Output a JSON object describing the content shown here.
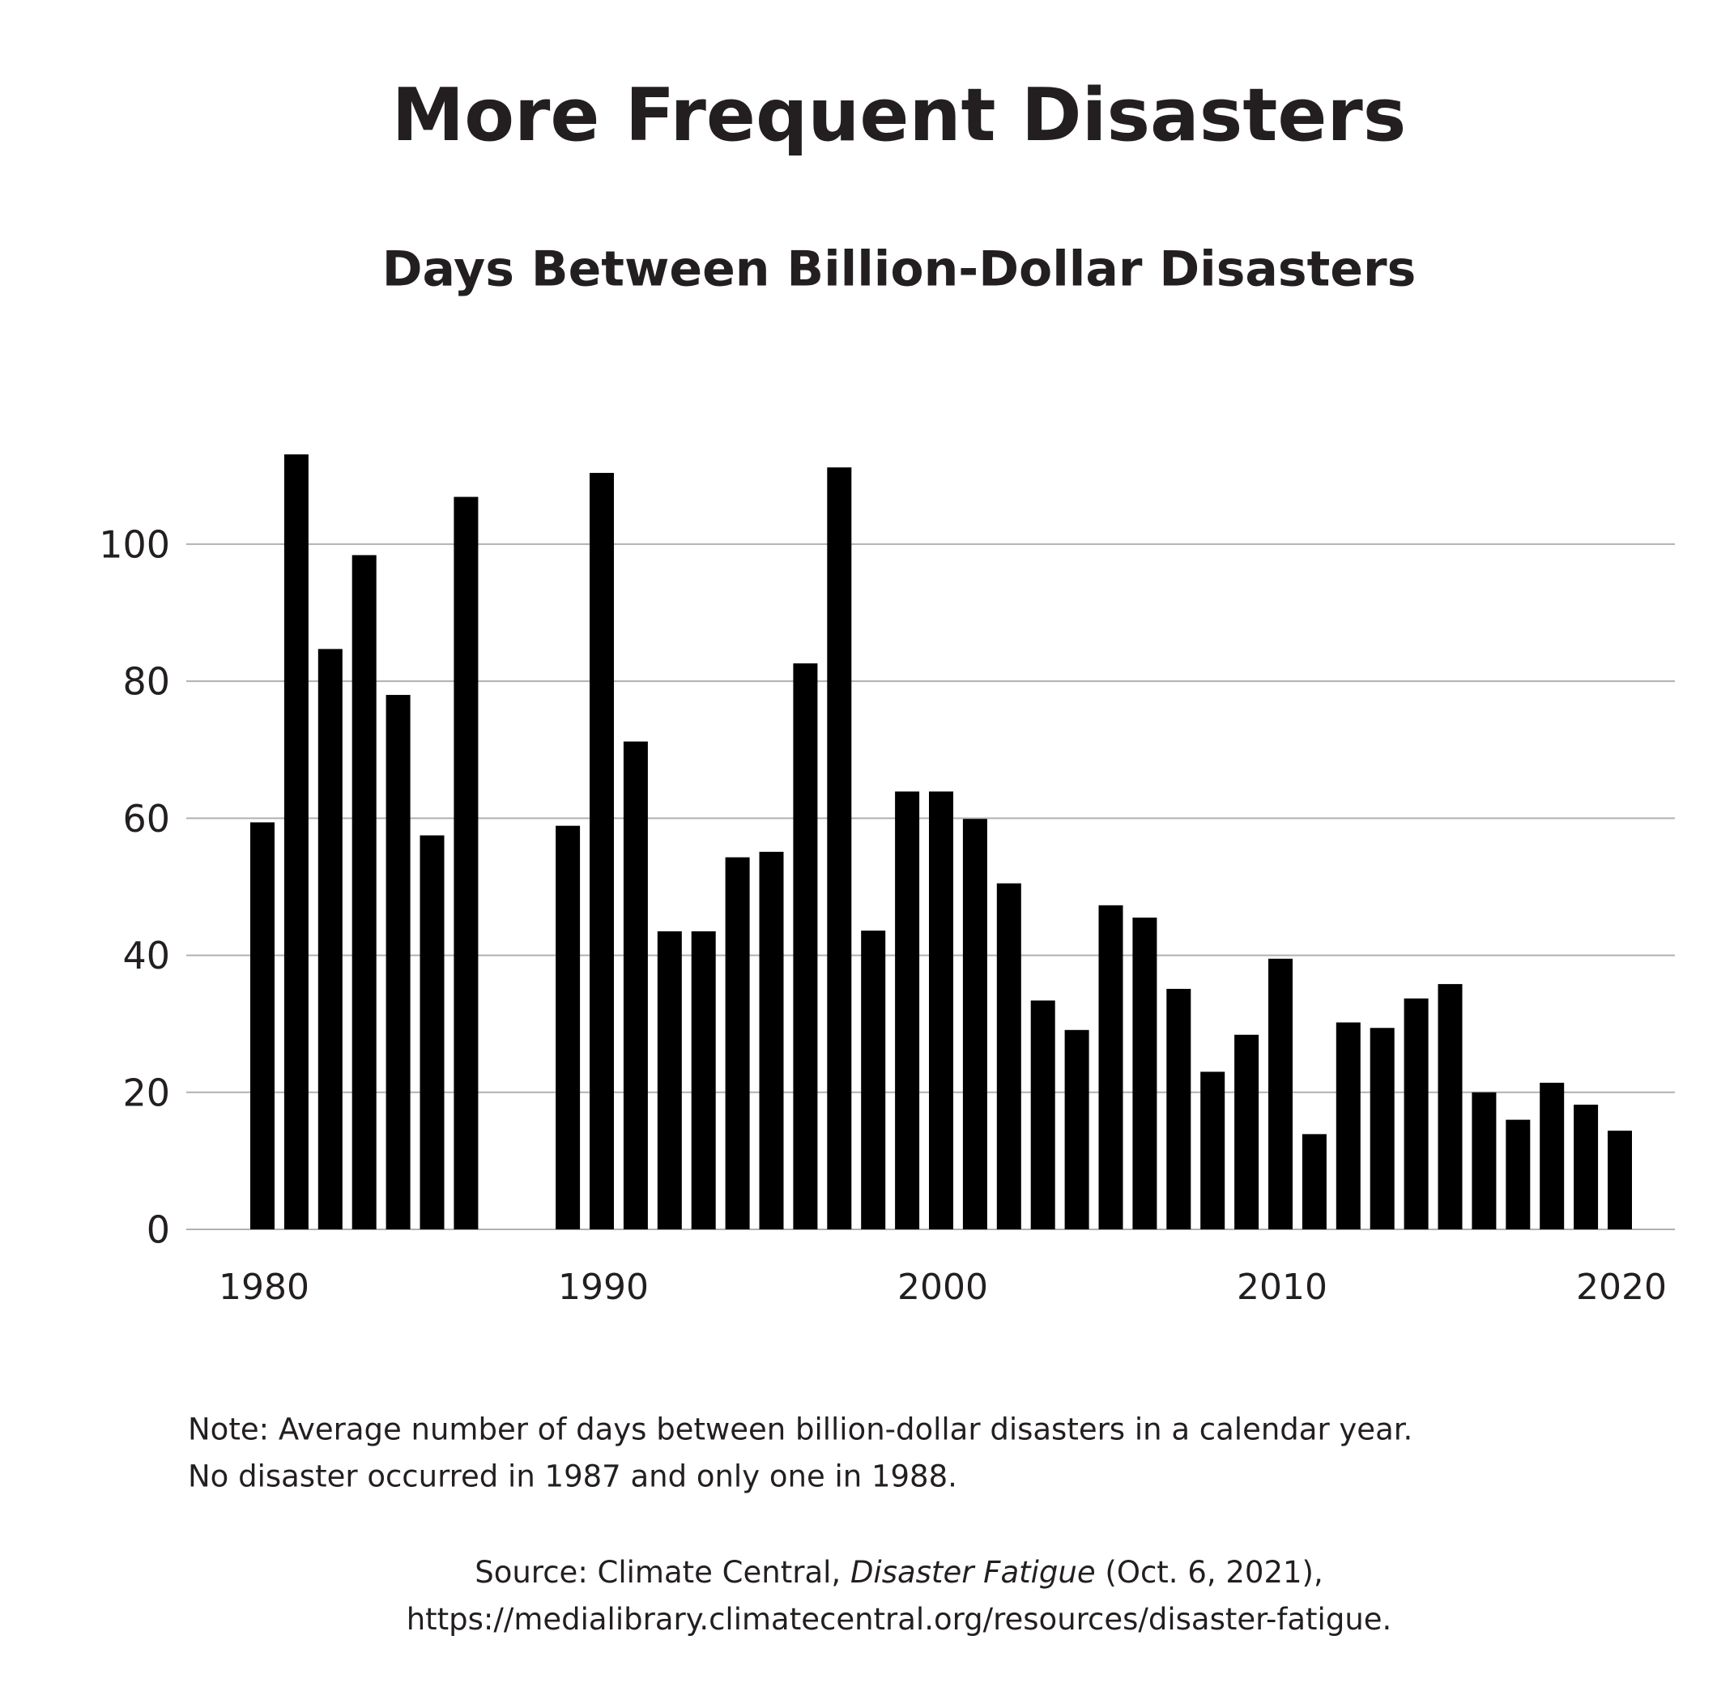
{
  "chart_data": {
    "type": "bar",
    "title": "More Frequent Disasters",
    "subtitle": "Days Between Billion-Dollar Disasters",
    "categories": [
      "1980",
      null,
      null,
      null,
      null,
      null,
      null,
      null,
      null,
      null,
      "1990",
      null,
      null,
      null,
      null,
      null,
      null,
      null,
      null,
      null,
      "2000",
      null,
      null,
      null,
      null,
      null,
      null,
      null,
      null,
      null,
      "2010",
      null,
      null,
      null,
      null,
      null,
      null,
      null,
      null,
      null,
      "2020"
    ],
    "values": [
      59.4,
      113.1,
      84.7,
      98.4,
      78,
      57.5,
      106.9,
      null,
      null,
      58.9,
      110.4,
      71.2,
      43.5,
      43.5,
      54.3,
      55.1,
      82.6,
      111.2,
      43.6,
      63.9,
      63.9,
      59.9,
      50.5,
      33.4,
      29.1,
      47.3,
      45.5,
      35.1,
      23,
      28.4,
      39.5,
      13.9,
      30.2,
      29.4,
      33.7,
      35.8,
      20,
      16,
      21.4,
      18.2,
      14.4
    ],
    "color": "#000000",
    "ylim": [
      0,
      115
    ],
    "yticks": [
      0,
      20,
      40,
      60,
      80,
      100
    ],
    "grid": true,
    "note": [
      "Note: Average number of days between billion-dollar disasters in a calendar year.",
      "No disaster occurred in 1987 and only one in 1988."
    ],
    "source": [
      [
        "Source: Climate Central, ",
        "Disaster Fatigue",
        " (Oct. 6, 2021),"
      ],
      [
        "https://medialibrary.climatecentral.org/resources/disaster-fatigue."
      ]
    ]
  }
}
